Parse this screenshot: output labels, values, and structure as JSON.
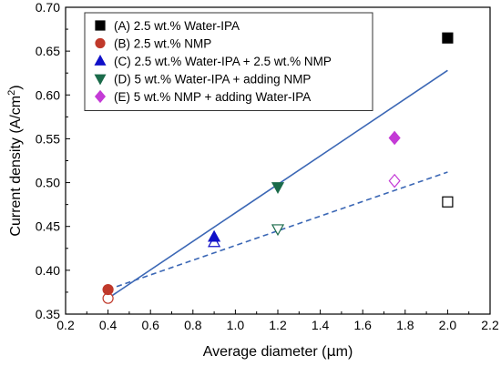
{
  "chart_data": {
    "type": "scatter",
    "xlabel": "Average diameter (μm)",
    "xlabel_parts": {
      "before": "Average diameter (",
      "unit": "μ",
      "after": "m)"
    },
    "ylabel": "Current density (A/cm2)",
    "ylabel_parts": {
      "before": "Current density (A/cm",
      "sup": "2",
      "after": ")"
    },
    "xlim": [
      0.2,
      2.2
    ],
    "ylim": [
      0.35,
      0.7
    ],
    "xticks": [
      "0.2",
      "0.4",
      "0.6",
      "0.8",
      "1.0",
      "1.2",
      "1.4",
      "1.6",
      "1.8",
      "2.0",
      "2.2"
    ],
    "yticks": [
      "0.35",
      "0.40",
      "0.45",
      "0.50",
      "0.55",
      "0.60",
      "0.65",
      "0.70"
    ],
    "grid": false,
    "legend_position": "top-left",
    "series": [
      {
        "name": "(A) 2.5 wt.% Water-IPA",
        "marker": "square",
        "color": "#000000",
        "filled": [
          [
            2.0,
            0.665
          ]
        ],
        "open": [
          [
            2.0,
            0.478
          ]
        ]
      },
      {
        "name": "(B) 2.5 wt.% NMP",
        "marker": "circle",
        "color": "#c0392b",
        "filled": [
          [
            0.4,
            0.378
          ]
        ],
        "open": [
          [
            0.4,
            0.368
          ]
        ]
      },
      {
        "name": "(C) 2.5 wt.% Water-IPA + 2.5 wt.% NMP",
        "marker": "triangle-up",
        "color": "#1010c8",
        "filled": [
          [
            0.9,
            0.438
          ]
        ],
        "open": [
          [
            0.9,
            0.432
          ]
        ]
      },
      {
        "name": "(D) 5 wt.% Water-IPA + adding NMP",
        "marker": "triangle-down",
        "color": "#1b6b4a",
        "filled": [
          [
            1.2,
            0.495
          ]
        ],
        "open": [
          [
            1.2,
            0.447
          ]
        ]
      },
      {
        "name": "(E) 5 wt.% NMP + adding Water-IPA",
        "marker": "diamond",
        "color": "#c43bd6",
        "filled": [
          [
            1.75,
            0.551
          ]
        ],
        "open": [
          [
            1.75,
            0.502
          ]
        ]
      }
    ],
    "trendlines": [
      {
        "style": "solid",
        "color": "#3b67b5",
        "from": [
          0.4,
          0.368
        ],
        "to": [
          2.0,
          0.628
        ]
      },
      {
        "style": "dashed",
        "color": "#3b67b5",
        "from": [
          0.4,
          0.378
        ],
        "to": [
          2.0,
          0.512
        ]
      }
    ]
  }
}
